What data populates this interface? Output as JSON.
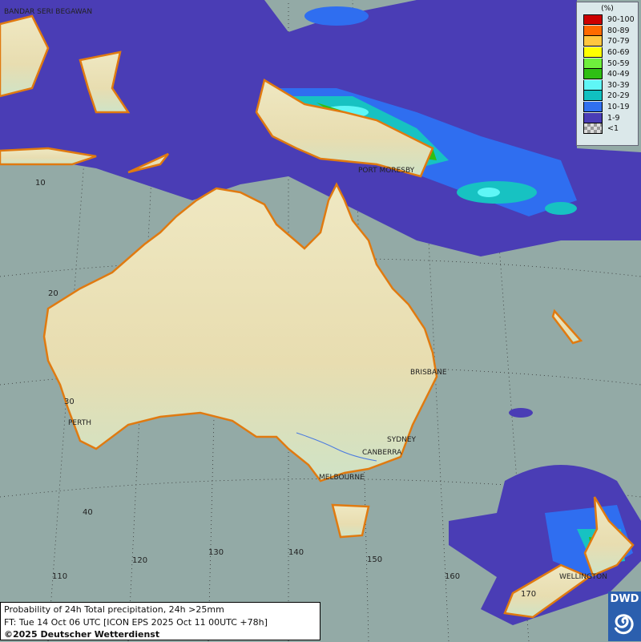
{
  "map": {
    "colors": {
      "sea": "#93aaa6",
      "land": "#f0e9c4",
      "coast": "#e07a10",
      "p1_9": "#4a3db5",
      "p10_19": "#2f6ef0",
      "p20_29": "#17c2c2",
      "p30_39": "#5ff6f6",
      "p40_49": "#2fbf14",
      "p50_59": "#6ef03c",
      "p60_69": "#ffff00"
    },
    "cities": [
      "BANDAR SERI BEGAWAN",
      "PORT MORESBY",
      "BRISBANE",
      "PERTH",
      "SYDNEY",
      "CANBERRA",
      "MELBOURNE",
      "WELLINGTON"
    ],
    "lat_labels": [
      "10",
      "20",
      "30",
      "40"
    ],
    "lon_labels": [
      "110",
      "120",
      "130",
      "140",
      "150",
      "160",
      "170"
    ]
  },
  "legend": {
    "title": "(%)",
    "items": [
      {
        "label": "90-100",
        "color": "#cc0000"
      },
      {
        "label": "80-89",
        "color": "#ff6a00"
      },
      {
        "label": "70-79",
        "color": "#ffc640"
      },
      {
        "label": "60-69",
        "color": "#ffff00"
      },
      {
        "label": "50-59",
        "color": "#6ef03c"
      },
      {
        "label": "40-49",
        "color": "#2fbf14"
      },
      {
        "label": "30-39",
        "color": "#5ff6f6"
      },
      {
        "label": "20-29",
        "color": "#10c0c0"
      },
      {
        "label": "10-19",
        "color": "#3070f0"
      },
      {
        "label": "1-9",
        "color": "#4a3db5"
      },
      {
        "label": "<1",
        "color": "checker"
      }
    ]
  },
  "caption": {
    "line1": "Probability of 24h Total precipitation, 24h >25mm",
    "line2": "FT: Tue 14 Oct 06 UTC [ICON EPS 2025 Oct 11 00UTC +78h]",
    "line3": "©2025 Deutscher Wetterdienst"
  },
  "logo": {
    "text": "DWD"
  }
}
